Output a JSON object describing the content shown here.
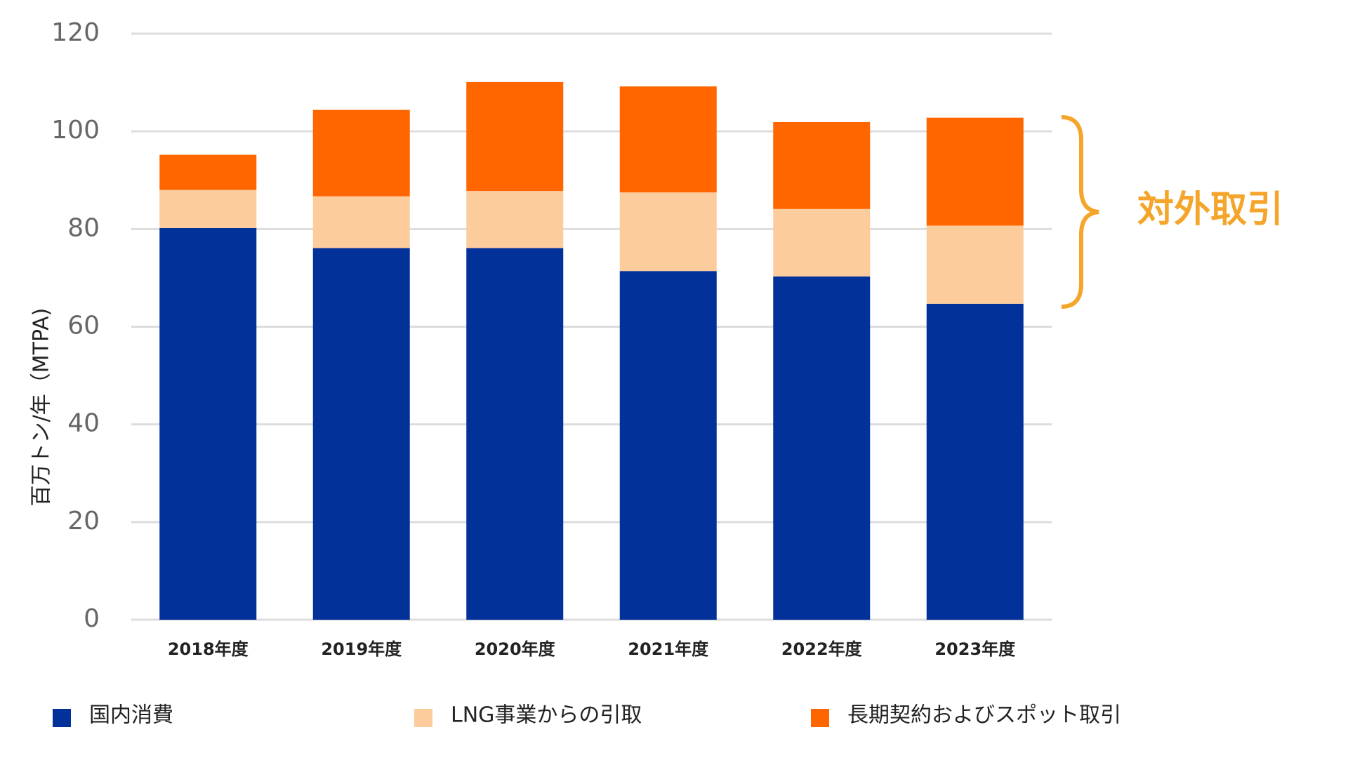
{
  "chart_data": {
    "type": "stacked_bar",
    "y_label": "百万トン/年（MTPA)",
    "annotation": "対外取引",
    "categories": [
      "2018年度",
      "2019年度",
      "2020年度",
      "2021年度",
      "2022年度",
      "2023年度"
    ],
    "series": [
      {
        "name": "国内消費",
        "color": "#03319a",
        "values": [
          80.2,
          76.1,
          76.1,
          71.4,
          70.3,
          64.7
        ]
      },
      {
        "name": "LNG事業からの引取",
        "color": "#fdcc9c",
        "values": [
          7.8,
          10.6,
          11.7,
          16.1,
          13.8,
          16.0
        ]
      },
      {
        "name": "長期契約およびスポット取引",
        "color": "#ff6600",
        "values": [
          7.2,
          17.7,
          22.3,
          21.7,
          17.8,
          22.1
        ]
      }
    ],
    "ylim": [
      0,
      120
    ],
    "yticks": [
      0,
      20,
      40,
      60,
      80,
      100,
      120
    ],
    "grid": true,
    "legend": "bottom"
  }
}
